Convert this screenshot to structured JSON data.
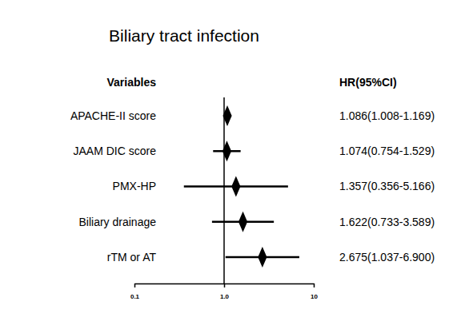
{
  "chart_data": {
    "type": "forest",
    "title": "Biliary tract infection",
    "label_header": "Variables",
    "value_header": "HR(95%CI)",
    "categories": [
      "APACHE-II score",
      "JAAM DIC score",
      "PMX-HP",
      "Biliary drainage",
      "rTM or AT"
    ],
    "values": [
      1.086,
      1.074,
      1.357,
      1.622,
      2.675
    ],
    "ci_lower": [
      1.008,
      0.754,
      0.356,
      0.733,
      1.037
    ],
    "ci_upper": [
      1.169,
      1.529,
      5.166,
      3.589,
      6.9
    ],
    "value_labels": [
      "1.086(1.008-1.169)",
      "1.074(0.754-1.529)",
      "1.357(0.356-5.166)",
      "1.622(0.733-3.589)",
      "2.675(1.037-6.900)"
    ],
    "log": "x",
    "xlim": [
      0.1,
      10
    ],
    "xticks": [
      0.1,
      {
        "value": 1,
        "label": "1.0"
      },
      10
    ],
    "reference": 1,
    "color": "#000000",
    "marker": "diamond"
  }
}
